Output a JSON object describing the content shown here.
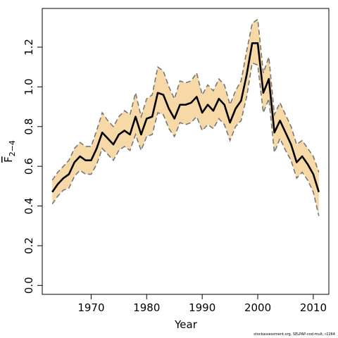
{
  "chart_data": {
    "type": "line",
    "xlabel": "Year",
    "ylabel": "F",
    "ylabel_sub": "2−4",
    "xticks": [
      1970,
      1980,
      1990,
      2000,
      2010
    ],
    "yticks": [
      "0.0",
      "0.2",
      "0.4",
      "0.6",
      "0.8",
      "1.0",
      "1.2"
    ],
    "xlim": [
      1961.2,
      2012.8
    ],
    "ylim": [
      -0.045,
      1.395
    ],
    "grid": false,
    "band_color": "#f7d9a8",
    "line_color": "#000000",
    "ci_color": "#777777",
    "x": [
      1963,
      1964,
      1965,
      1966,
      1967,
      1968,
      1969,
      1970,
      1971,
      1972,
      1973,
      1974,
      1975,
      1976,
      1977,
      1978,
      1979,
      1980,
      1981,
      1982,
      1983,
      1984,
      1985,
      1986,
      1987,
      1988,
      1989,
      1990,
      1991,
      1992,
      1993,
      1994,
      1995,
      1996,
      1997,
      1998,
      1999,
      2000,
      2001,
      2002,
      2003,
      2004,
      2005,
      2006,
      2007,
      2008,
      2009,
      2010,
      2011
    ],
    "series": [
      {
        "values": [
          0.47,
          0.51,
          0.54,
          0.56,
          0.62,
          0.65,
          0.63,
          0.63,
          0.69,
          0.77,
          0.74,
          0.71,
          0.76,
          0.78,
          0.76,
          0.85,
          0.76,
          0.84,
          0.85,
          0.97,
          0.96,
          0.89,
          0.84,
          0.91,
          0.91,
          0.92,
          0.95,
          0.87,
          0.91,
          0.88,
          0.94,
          0.91,
          0.82,
          0.89,
          0.93,
          1.06,
          1.22,
          1.22,
          0.97,
          1.04,
          0.77,
          0.83,
          0.77,
          0.71,
          0.62,
          0.65,
          0.61,
          0.56,
          0.47
        ]
      },
      {
        "values": [
          0.53,
          0.57,
          0.6,
          0.63,
          0.69,
          0.72,
          0.7,
          0.7,
          0.78,
          0.87,
          0.83,
          0.8,
          0.85,
          0.88,
          0.86,
          0.97,
          0.85,
          0.94,
          0.96,
          1.1,
          1.08,
          1.0,
          0.94,
          1.03,
          1.02,
          1.03,
          1.07,
          0.96,
          1.01,
          0.98,
          1.04,
          1.01,
          0.91,
          0.98,
          1.03,
          1.18,
          1.32,
          1.34,
          1.07,
          1.15,
          0.86,
          0.92,
          0.86,
          0.8,
          0.71,
          0.73,
          0.69,
          0.65,
          0.57
        ]
      },
      {
        "values": [
          0.41,
          0.45,
          0.48,
          0.49,
          0.55,
          0.58,
          0.56,
          0.56,
          0.61,
          0.69,
          0.66,
          0.63,
          0.68,
          0.7,
          0.68,
          0.76,
          0.68,
          0.75,
          0.76,
          0.87,
          0.86,
          0.79,
          0.75,
          0.82,
          0.81,
          0.82,
          0.85,
          0.78,
          0.81,
          0.79,
          0.84,
          0.81,
          0.73,
          0.8,
          0.83,
          0.95,
          1.12,
          1.11,
          0.87,
          0.94,
          0.67,
          0.74,
          0.68,
          0.63,
          0.54,
          0.57,
          0.53,
          0.47,
          0.35
        ]
      }
    ]
  },
  "credit": "stockassessment.org, SELPAP-cod-mult, r2264"
}
